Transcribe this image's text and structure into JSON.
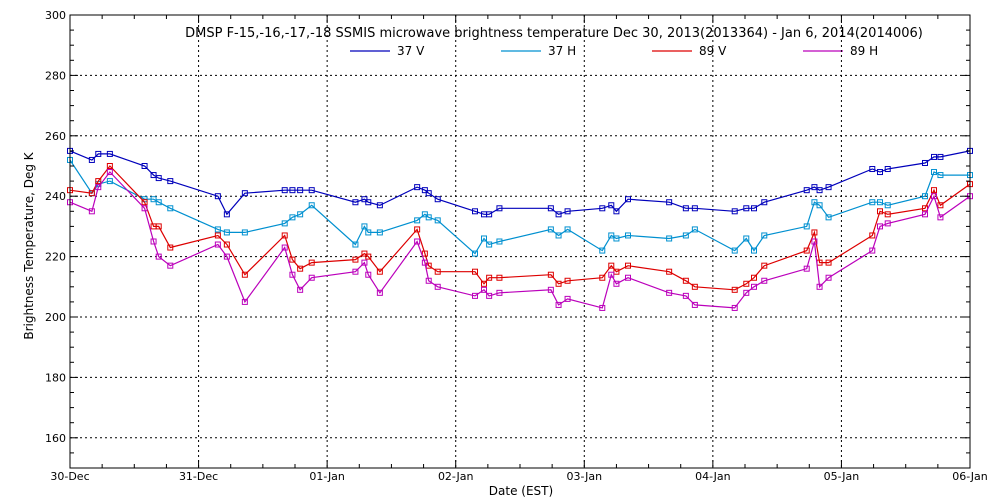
{
  "chart_data": {
    "type": "line",
    "title": "DMSP F-15,-16,-17,-18 SSMIS microwave brightness temperature Dec 30, 2013(2013364) - Jan  6, 2014(2014006)",
    "xlabel": "Date (EST)",
    "ylabel": "Brightness Temperature, Deg K",
    "x_ticks": [
      "30-Dec",
      "31-Dec",
      "01-Jan",
      "02-Jan",
      "03-Jan",
      "04-Jan",
      "05-Jan",
      "06-Jan"
    ],
    "xlim": [
      0,
      7
    ],
    "ylim": [
      150,
      300
    ],
    "y_ticks": [
      160,
      180,
      200,
      220,
      240,
      260,
      280,
      300
    ],
    "grid": true,
    "legend_position": "top",
    "series": [
      {
        "name": "37 V",
        "color": "#0000bb",
        "points": [
          [
            0.0,
            255
          ],
          [
            0.17,
            252
          ],
          [
            0.22,
            254
          ],
          [
            0.31,
            254
          ],
          [
            0.58,
            250
          ],
          [
            0.65,
            247
          ],
          [
            0.69,
            246
          ],
          [
            0.78,
            245
          ],
          [
            1.15,
            240
          ],
          [
            1.22,
            234
          ],
          [
            1.36,
            241
          ],
          [
            1.67,
            242
          ],
          [
            1.73,
            242
          ],
          [
            1.79,
            242
          ],
          [
            1.88,
            242
          ],
          [
            2.22,
            238
          ],
          [
            2.29,
            239
          ],
          [
            2.32,
            238
          ],
          [
            2.41,
            237
          ],
          [
            2.7,
            243
          ],
          [
            2.76,
            242
          ],
          [
            2.79,
            241
          ],
          [
            2.86,
            239
          ],
          [
            3.15,
            235
          ],
          [
            3.22,
            234
          ],
          [
            3.26,
            234
          ],
          [
            3.34,
            236
          ],
          [
            3.74,
            236
          ],
          [
            3.8,
            234
          ],
          [
            3.87,
            235
          ],
          [
            4.14,
            236
          ],
          [
            4.21,
            237
          ],
          [
            4.25,
            235
          ],
          [
            4.34,
            239
          ],
          [
            4.66,
            238
          ],
          [
            4.79,
            236
          ],
          [
            4.86,
            236
          ],
          [
            5.17,
            235
          ],
          [
            5.26,
            236
          ],
          [
            5.32,
            236
          ],
          [
            5.4,
            238
          ],
          [
            5.73,
            242
          ],
          [
            5.79,
            243
          ],
          [
            5.83,
            242
          ],
          [
            5.9,
            243
          ],
          [
            6.24,
            249
          ],
          [
            6.3,
            248
          ],
          [
            6.36,
            249
          ],
          [
            6.65,
            251
          ],
          [
            6.72,
            253
          ],
          [
            6.77,
            253
          ],
          [
            7.0,
            255
          ]
        ]
      },
      {
        "name": "37 H",
        "color": "#0090d0",
        "points": [
          [
            0.0,
            252
          ],
          [
            0.17,
            241
          ],
          [
            0.22,
            244
          ],
          [
            0.31,
            245
          ],
          [
            0.58,
            239
          ],
          [
            0.65,
            239
          ],
          [
            0.69,
            238
          ],
          [
            0.78,
            236
          ],
          [
            1.15,
            229
          ],
          [
            1.22,
            228
          ],
          [
            1.36,
            228
          ],
          [
            1.67,
            231
          ],
          [
            1.73,
            233
          ],
          [
            1.79,
            234
          ],
          [
            1.88,
            237
          ],
          [
            2.22,
            224
          ],
          [
            2.29,
            230
          ],
          [
            2.32,
            228
          ],
          [
            2.41,
            228
          ],
          [
            2.7,
            232
          ],
          [
            2.76,
            234
          ],
          [
            2.79,
            233
          ],
          [
            2.86,
            232
          ],
          [
            3.15,
            221
          ],
          [
            3.22,
            226
          ],
          [
            3.26,
            224
          ],
          [
            3.34,
            225
          ],
          [
            3.74,
            229
          ],
          [
            3.8,
            227
          ],
          [
            3.87,
            229
          ],
          [
            4.14,
            222
          ],
          [
            4.21,
            227
          ],
          [
            4.25,
            226
          ],
          [
            4.34,
            227
          ],
          [
            4.66,
            226
          ],
          [
            4.79,
            227
          ],
          [
            4.86,
            229
          ],
          [
            5.17,
            222
          ],
          [
            5.26,
            226
          ],
          [
            5.32,
            222
          ],
          [
            5.4,
            227
          ],
          [
            5.73,
            230
          ],
          [
            5.79,
            238
          ],
          [
            5.83,
            237
          ],
          [
            5.9,
            233
          ],
          [
            6.24,
            238
          ],
          [
            6.3,
            238
          ],
          [
            6.36,
            237
          ],
          [
            6.65,
            240
          ],
          [
            6.72,
            248
          ],
          [
            6.77,
            247
          ],
          [
            7.0,
            247
          ]
        ]
      },
      {
        "name": "89 V",
        "color": "#dd0000",
        "points": [
          [
            0.0,
            242
          ],
          [
            0.17,
            241
          ],
          [
            0.22,
            245
          ],
          [
            0.31,
            250
          ],
          [
            0.58,
            238
          ],
          [
            0.65,
            230
          ],
          [
            0.69,
            230
          ],
          [
            0.78,
            223
          ],
          [
            1.15,
            227
          ],
          [
            1.22,
            224
          ],
          [
            1.36,
            214
          ],
          [
            1.67,
            227
          ],
          [
            1.73,
            219
          ],
          [
            1.79,
            216
          ],
          [
            1.88,
            218
          ],
          [
            2.22,
            219
          ],
          [
            2.29,
            221
          ],
          [
            2.32,
            220
          ],
          [
            2.41,
            215
          ],
          [
            2.7,
            229
          ],
          [
            2.76,
            221
          ],
          [
            2.79,
            217
          ],
          [
            2.86,
            215
          ],
          [
            3.15,
            215
          ],
          [
            3.22,
            211
          ],
          [
            3.26,
            213
          ],
          [
            3.34,
            213
          ],
          [
            3.74,
            214
          ],
          [
            3.8,
            211
          ],
          [
            3.87,
            212
          ],
          [
            4.14,
            213
          ],
          [
            4.21,
            217
          ],
          [
            4.25,
            215
          ],
          [
            4.34,
            217
          ],
          [
            4.66,
            215
          ],
          [
            4.79,
            212
          ],
          [
            4.86,
            210
          ],
          [
            5.17,
            209
          ],
          [
            5.26,
            211
          ],
          [
            5.32,
            213
          ],
          [
            5.4,
            217
          ],
          [
            5.73,
            222
          ],
          [
            5.79,
            228
          ],
          [
            5.83,
            218
          ],
          [
            5.9,
            218
          ],
          [
            6.24,
            227
          ],
          [
            6.3,
            235
          ],
          [
            6.36,
            234
          ],
          [
            6.65,
            236
          ],
          [
            6.72,
            242
          ],
          [
            6.77,
            237
          ],
          [
            7.0,
            244
          ]
        ]
      },
      {
        "name": "89 H",
        "color": "#bb00bb",
        "points": [
          [
            0.0,
            238
          ],
          [
            0.17,
            235
          ],
          [
            0.22,
            243
          ],
          [
            0.31,
            248
          ],
          [
            0.58,
            236
          ],
          [
            0.65,
            225
          ],
          [
            0.69,
            220
          ],
          [
            0.78,
            217
          ],
          [
            1.15,
            224
          ],
          [
            1.22,
            220
          ],
          [
            1.36,
            205
          ],
          [
            1.67,
            223
          ],
          [
            1.73,
            214
          ],
          [
            1.79,
            209
          ],
          [
            1.88,
            213
          ],
          [
            2.22,
            215
          ],
          [
            2.29,
            218
          ],
          [
            2.32,
            214
          ],
          [
            2.41,
            208
          ],
          [
            2.7,
            225
          ],
          [
            2.76,
            218
          ],
          [
            2.79,
            212
          ],
          [
            2.86,
            210
          ],
          [
            3.15,
            207
          ],
          [
            3.22,
            209
          ],
          [
            3.26,
            207
          ],
          [
            3.34,
            208
          ],
          [
            3.74,
            209
          ],
          [
            3.8,
            204
          ],
          [
            3.87,
            206
          ],
          [
            4.14,
            203
          ],
          [
            4.21,
            214
          ],
          [
            4.25,
            211
          ],
          [
            4.34,
            213
          ],
          [
            4.66,
            208
          ],
          [
            4.79,
            207
          ],
          [
            4.86,
            204
          ],
          [
            5.17,
            203
          ],
          [
            5.26,
            208
          ],
          [
            5.32,
            210
          ],
          [
            5.4,
            212
          ],
          [
            5.73,
            216
          ],
          [
            5.79,
            225
          ],
          [
            5.83,
            210
          ],
          [
            5.9,
            213
          ],
          [
            6.24,
            222
          ],
          [
            6.3,
            230
          ],
          [
            6.36,
            231
          ],
          [
            6.65,
            234
          ],
          [
            6.72,
            240
          ],
          [
            6.77,
            233
          ],
          [
            7.0,
            240
          ]
        ]
      }
    ]
  }
}
